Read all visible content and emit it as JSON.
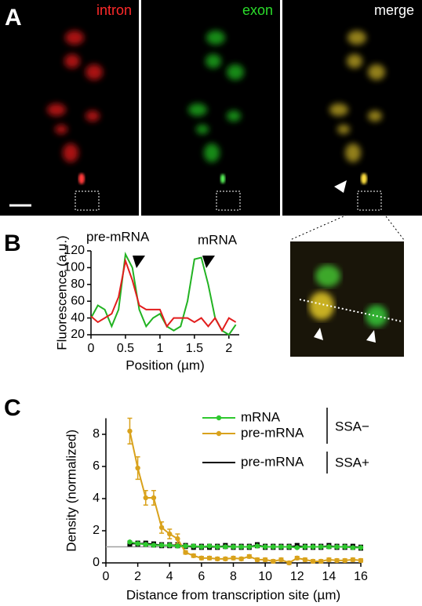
{
  "panel_labels": [
    "A",
    "B",
    "C"
  ],
  "images": [
    {
      "label": "intron",
      "color": "#ff2a2a"
    },
    {
      "label": "exon",
      "color": "#2bdc2b"
    },
    {
      "label": "merge",
      "color": "#ffffff"
    }
  ],
  "chart_data": [
    {
      "type": "line",
      "ylabel": "Fluorescence (a.u.)",
      "xlabel": "Position (µm)",
      "annotations": [
        "pre-mRNA",
        "mRNA"
      ],
      "x": [
        0,
        0.1,
        0.2,
        0.3,
        0.4,
        0.5,
        0.6,
        0.7,
        0.8,
        0.9,
        1.0,
        1.1,
        1.2,
        1.3,
        1.4,
        1.5,
        1.6,
        1.7,
        1.8,
        1.9,
        2.0,
        2.1
      ],
      "series": [
        {
          "color": "#e21d1d",
          "values": [
            42,
            35,
            40,
            45,
            65,
            108,
            85,
            55,
            50,
            50,
            50,
            30,
            40,
            40,
            40,
            35,
            40,
            30,
            40,
            25,
            40,
            35
          ]
        },
        {
          "color": "#22b322",
          "values": [
            40,
            55,
            50,
            30,
            50,
            116,
            100,
            50,
            30,
            40,
            45,
            30,
            25,
            30,
            60,
            110,
            112,
            80,
            40,
            25,
            20,
            32
          ]
        }
      ],
      "xlim": [
        0,
        2.15
      ],
      "ylim": [
        20,
        120
      ],
      "xticks": [
        0,
        0.5,
        1,
        1.5,
        2
      ],
      "yticks": [
        20,
        40,
        60,
        80,
        100,
        120
      ]
    },
    {
      "type": "line",
      "ylabel": "Density (normalized)",
      "xlabel": "Distance from transcription site (µm)",
      "x": [
        1.5,
        2,
        2.5,
        3,
        3.5,
        4,
        4.5,
        5,
        5.5,
        6,
        6.5,
        7,
        7.5,
        8,
        8.5,
        9,
        9.5,
        10,
        10.5,
        11,
        11.5,
        12,
        12.5,
        13,
        13.5,
        14,
        14.5,
        15,
        15.5,
        16
      ],
      "series": [
        {
          "name": "mRNA",
          "color": "#2ec82e",
          "marker": "circle",
          "values": [
            1.3,
            1.2,
            1.15,
            1.1,
            1.1,
            1.1,
            1.05,
            1.05,
            1.05,
            1.0,
            1.05,
            1.0,
            1.0,
            1.0,
            1.0,
            1.0,
            1.05,
            1.0,
            1.0,
            1.0,
            1.0,
            0.95,
            1.0,
            1.0,
            1.0,
            1.0,
            1.0,
            1.0,
            0.95,
            0.95
          ]
        },
        {
          "name": "pre-mRNA",
          "color": "#d9a21c",
          "marker": "circle",
          "values": [
            8.2,
            5.9,
            4.05,
            4.05,
            2.2,
            1.8,
            1.5,
            0.65,
            0.45,
            0.3,
            0.3,
            0.25,
            0.25,
            0.3,
            0.25,
            0.4,
            0.2,
            0.2,
            0.1,
            0.2,
            0.0,
            0.3,
            0.2,
            0.1,
            0.1,
            0.2,
            0.15,
            0.15,
            0.2,
            0.15
          ],
          "errors": [
            0.8,
            0.7,
            0.45,
            0.45,
            0.35,
            0.3,
            0.3,
            0.1,
            0.1,
            0.1,
            0.1,
            0.1,
            0.1,
            0.1,
            0.1,
            0.1,
            0.1,
            0.1,
            0.1,
            0.1,
            0.1,
            0.1,
            0.1,
            0.1,
            0.1,
            0.1,
            0.1,
            0.1,
            0.1,
            0.1
          ]
        },
        {
          "name": "pre-mRNA",
          "color": "#000000",
          "marker": "square",
          "values": [
            1.2,
            1.2,
            1.2,
            1.15,
            1.1,
            1.1,
            1.1,
            1.05,
            1.0,
            1.0,
            1.0,
            1.0,
            1.05,
            1.0,
            1.0,
            1.0,
            1.1,
            1.0,
            1.0,
            1.0,
            1.0,
            1.05,
            1.0,
            1.0,
            1.0,
            1.05,
            1.0,
            1.0,
            1.0,
            0.95
          ],
          "errors": [
            0.15,
            0.15,
            0.15,
            0.15,
            0.15,
            0.15,
            0.15,
            0.15,
            0.15,
            0.15,
            0.15,
            0.15,
            0.15,
            0.15,
            0.15,
            0.15,
            0.15,
            0.15,
            0.15,
            0.15,
            0.15,
            0.15,
            0.15,
            0.15,
            0.15,
            0.15,
            0.15,
            0.15,
            0.15,
            0.15
          ]
        }
      ],
      "legend_groups": [
        "SSA−",
        "SSA+"
      ],
      "reference_line": 1,
      "reference_color": "#a0a0a0",
      "xlim": [
        0,
        16
      ],
      "ylim": [
        0,
        9
      ],
      "xticks": [
        0,
        2,
        4,
        6,
        8,
        10,
        12,
        14,
        16
      ],
      "yticks": [
        0,
        2,
        4,
        6,
        8
      ]
    }
  ]
}
